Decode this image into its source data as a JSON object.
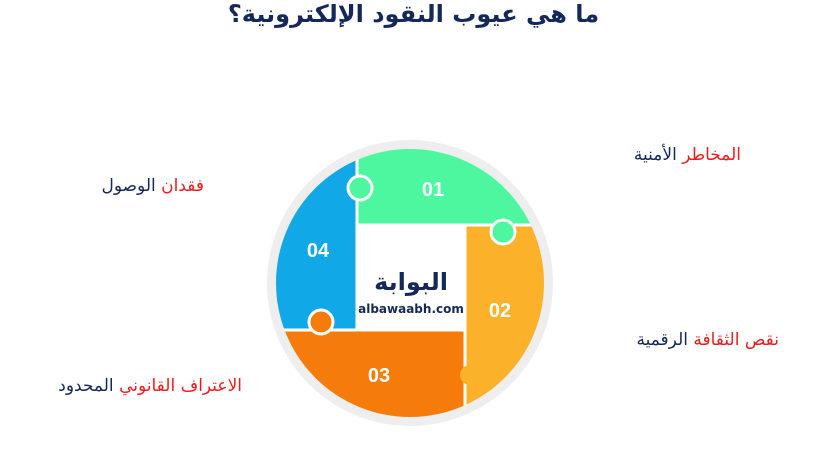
{
  "title": "ما هي عيوب النقود الإلكترونية؟",
  "items": [
    {
      "number": "01",
      "red": "المخاطر",
      "rest": "الأمنية",
      "color": "#4cf7a0"
    },
    {
      "number": "02",
      "red": "نقص الثقافة",
      "rest": "الرقمية",
      "color": "#fbb12a"
    },
    {
      "number": "03",
      "red": "الاعتراف القانوني",
      "rest": "المحدود",
      "color": "#f57c0a"
    },
    {
      "number": "04",
      "red": "فقدان",
      "rest": "الوصول",
      "color": "#10a8e6"
    }
  ],
  "logo": {
    "arabic": "البوابة",
    "latin": "albawaabh.com"
  }
}
